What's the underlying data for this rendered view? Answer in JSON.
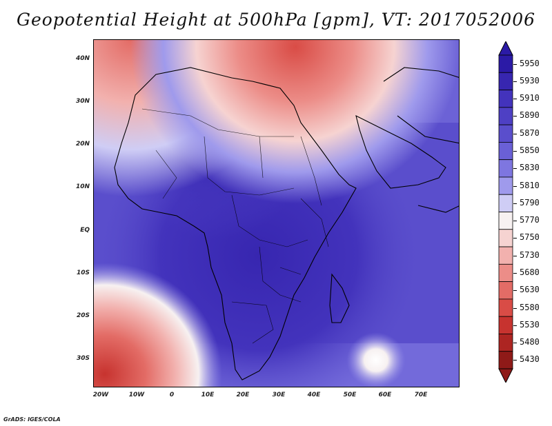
{
  "title": "Geopotential Height at 500hPa [gpm], VT: 2017052006",
  "footer": "GrADS: IGES/COLA",
  "lat_labels": [
    "40N",
    "30N",
    "20N",
    "10N",
    "EQ",
    "10S",
    "20S",
    "30S"
  ],
  "lon_labels": [
    "20W",
    "10W",
    "0",
    "10E",
    "20E",
    "30E",
    "40E",
    "50E",
    "60E",
    "70E"
  ],
  "colorbar": {
    "levels": [
      "5950",
      "5930",
      "5910",
      "5890",
      "5870",
      "5850",
      "5830",
      "5810",
      "5790",
      "5770",
      "5750",
      "5730",
      "5680",
      "5630",
      "5580",
      "5530",
      "5480",
      "5430"
    ],
    "colors": [
      "#2b1aa6",
      "#3726b0",
      "#4333bc",
      "#4e40c4",
      "#5a4ecc",
      "#6a60d6",
      "#7e76e0",
      "#9f9aec",
      "#cfcdf5",
      "#f7f1f1",
      "#f6d3d1",
      "#f2b1ae",
      "#ec8d88",
      "#e36c66",
      "#d94c46",
      "#c7332f",
      "#ad2522",
      "#8f1a18"
    ]
  },
  "map": {
    "projection": "lat-lon",
    "lon_range": [
      -23,
      80
    ],
    "lat_range": [
      -37,
      45
    ],
    "field": "Geopotential Height at 500hPa",
    "units": "gpm"
  }
}
